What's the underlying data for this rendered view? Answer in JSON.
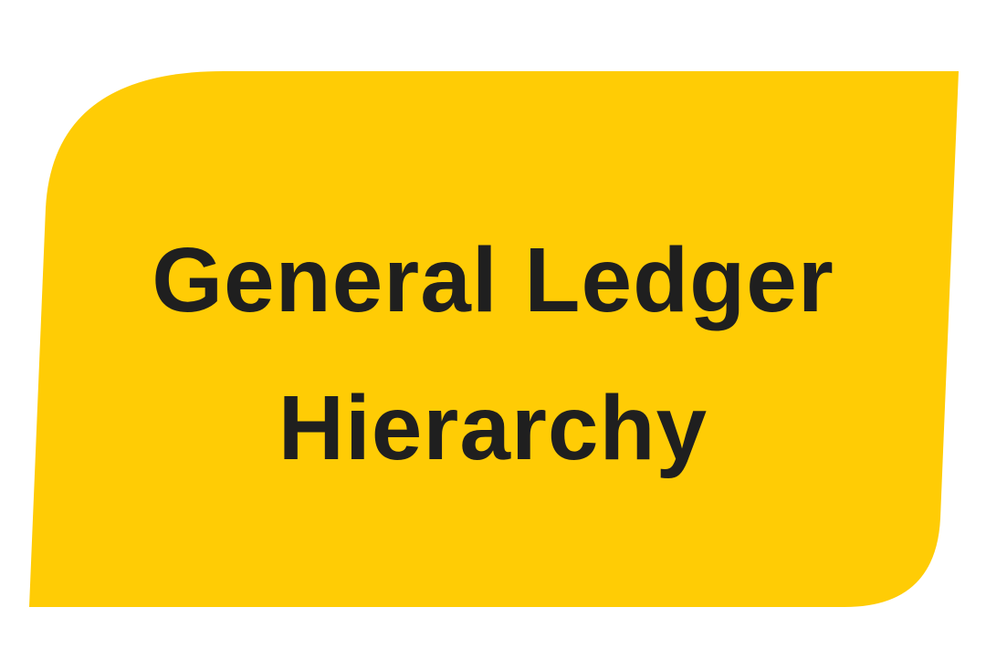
{
  "tile": {
    "title_line_1": "General Ledger",
    "title_line_2": "Hierarchy"
  },
  "colors": {
    "background": "#ffffff",
    "tile_fill": "#FFCC05",
    "text": "#1f1f1f"
  }
}
